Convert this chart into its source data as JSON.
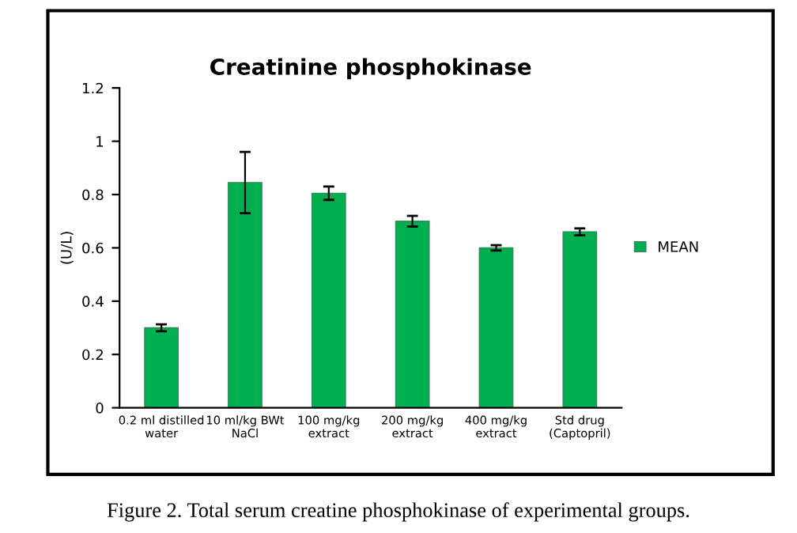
{
  "chart_data": {
    "type": "bar",
    "title": "Creatinine phosphokinase",
    "ylabel": "(U/L)",
    "categories": [
      "0.2 ml distilled\nwater",
      "10 ml/kg BWt\nNaCl",
      "100 mg/kg\nextract",
      "200 mg/kg\nextract",
      "400 mg/kg\nextract",
      "Std drug\n(Captopril)"
    ],
    "series": [
      {
        "name": "MEAN",
        "color": "#00b050",
        "values": [
          0.3,
          0.845,
          0.805,
          0.7,
          0.6,
          0.66
        ],
        "errors": [
          0.013,
          [
            0.73,
            0.96
          ],
          0.025,
          0.02,
          0.01,
          0.013
        ]
      }
    ],
    "ylim": [
      0,
      1.2
    ],
    "yticks": [
      0,
      0.2,
      0.4,
      0.6,
      0.8,
      1,
      1.2
    ],
    "grid": false,
    "legend": "right",
    "annotations": [
      "Figure 2. Total serum creatine phosphokinase of experimental groups."
    ]
  }
}
